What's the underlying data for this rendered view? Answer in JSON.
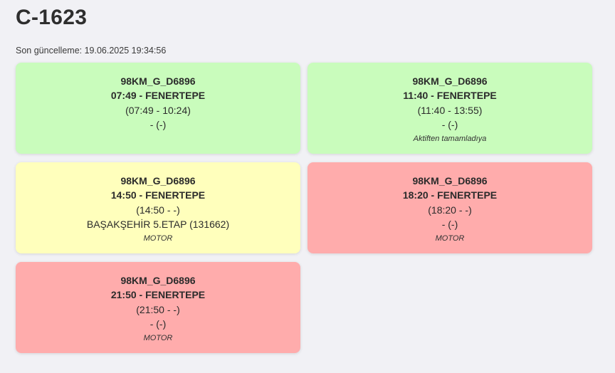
{
  "header": {
    "title": "C-1623",
    "last_update": "Son güncelleme: 19.06.2025 19:34:56"
  },
  "colors": {
    "green": "#c9fcbc",
    "yellow": "#ffffbc",
    "red": "#ffacac"
  },
  "cards": [
    {
      "status": "green",
      "line": "98KM_G_D6896",
      "trip": "07:49 - FENERTEPE",
      "time_range": "(07:49 - 10:24)",
      "location": "- (-)",
      "note": ""
    },
    {
      "status": "green",
      "line": "98KM_G_D6896",
      "trip": "11:40 - FENERTEPE",
      "time_range": "(11:40 - 13:55)",
      "location": "- (-)",
      "note": "Aktiften tamamladıya"
    },
    {
      "status": "yellow",
      "line": "98KM_G_D6896",
      "trip": "14:50 - FENERTEPE",
      "time_range": "(14:50 - -)",
      "location": "BAŞAKŞEHİR 5.ETAP (131662)",
      "note": "MOTOR"
    },
    {
      "status": "red",
      "line": "98KM_G_D6896",
      "trip": "18:20 - FENERTEPE",
      "time_range": "(18:20 - -)",
      "location": "- (-)",
      "note": "MOTOR"
    },
    {
      "status": "red",
      "line": "98KM_G_D6896",
      "trip": "21:50 - FENERTEPE",
      "time_range": "(21:50 - -)",
      "location": "- (-)",
      "note": "MOTOR"
    }
  ]
}
